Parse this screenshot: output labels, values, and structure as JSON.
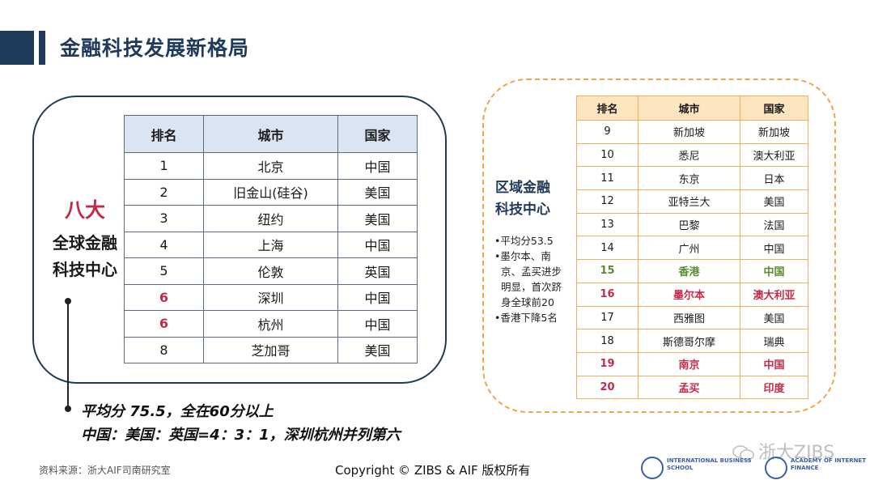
{
  "page_title": "金融科技发展新格局",
  "colors": {
    "navy": "#1f3a5a",
    "red": "#c62a48",
    "green": "#5b8a2f",
    "orange": "#f0a54a"
  },
  "left_label": {
    "line1": "八大",
    "line2": "全球金融",
    "line3": "科技中心"
  },
  "top8": {
    "headers": [
      "排名",
      "城市",
      "国家"
    ],
    "rows": [
      [
        "1",
        "北京",
        "中国"
      ],
      [
        "2",
        "旧金山(硅谷)",
        "美国"
      ],
      [
        "3",
        "纽约",
        "美国"
      ],
      [
        "4",
        "上海",
        "中国"
      ],
      [
        "5",
        "伦敦",
        "英国"
      ],
      [
        "6",
        "深圳",
        "中国"
      ],
      [
        "6",
        "杭州",
        "中国"
      ],
      [
        "8",
        "芝加哥",
        "美国"
      ]
    ]
  },
  "summary": {
    "line1": "平均分 75.5，全在60分以上",
    "line2": "中国：美国：英国=4：3：1，深圳杭州并列第六"
  },
  "regional": {
    "title_line1": "区域金融",
    "title_line2": "科技中心",
    "notes": [
      "•平均分53.5",
      "•墨尔本、南京、孟买进步明显，首次跻身全球前20",
      "•香港下降5名"
    ],
    "headers": [
      "排名",
      "城市",
      "国家"
    ],
    "rows": [
      [
        "9",
        "新加坡",
        "新加坡"
      ],
      [
        "10",
        "悉尼",
        "澳大利亚"
      ],
      [
        "11",
        "东京",
        "日本"
      ],
      [
        "12",
        "亚特兰大",
        "美国"
      ],
      [
        "13",
        "巴黎",
        "法国"
      ],
      [
        "14",
        "广州",
        "中国"
      ],
      [
        "15",
        "香港",
        "中国"
      ],
      [
        "16",
        "墨尔本",
        "澳大利亚"
      ],
      [
        "17",
        "西雅图",
        "美国"
      ],
      [
        "18",
        "斯德哥尔摩",
        "瑞典"
      ],
      [
        "19",
        "南京",
        "中国"
      ],
      [
        "20",
        "孟买",
        "印度"
      ]
    ]
  },
  "footer": {
    "source": "资料来源：浙大AIF司南研究室",
    "copyright": "Copyright © ZIBS & AIF 版权所有",
    "watermark": "浙大ZIBS"
  }
}
